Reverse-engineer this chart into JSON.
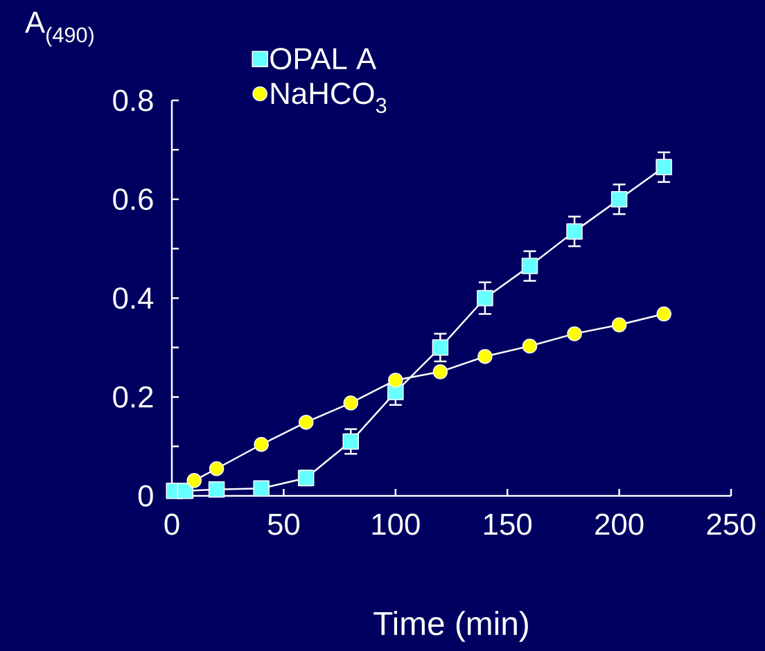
{
  "chart_data": {
    "type": "line",
    "xlabel": "Time (min)",
    "ylabel": "A$_{(490)}$",
    "xlim": [
      0,
      250
    ],
    "xticks": [
      0,
      50,
      100,
      150,
      200,
      250
    ],
    "ylim": [
      0,
      0.8
    ],
    "yticks": [
      0,
      {
        "value": 0.1,
        "label": null
      },
      0.2,
      {
        "value": 0.3,
        "label": null
      },
      0.4,
      {
        "value": 0.5,
        "label": null
      },
      0.6,
      {
        "value": 0.7,
        "label": null
      },
      0.8
    ],
    "grid": false,
    "legend": "top",
    "line_style": "solid",
    "series": [
      {
        "name": "OPAL A",
        "color": "#66ffff",
        "marker": "square",
        "x": [
          1,
          6,
          20,
          40,
          60,
          80,
          100,
          120,
          140,
          160,
          180,
          200,
          220
        ],
        "values": [
          0.01,
          0.01,
          0.013,
          0.015,
          0.036,
          0.11,
          0.21,
          0.3,
          0.4,
          0.465,
          0.535,
          0.6,
          0.665
        ],
        "errors": [
          null,
          null,
          null,
          null,
          0.015,
          0.025,
          0.026,
          0.028,
          0.032,
          0.03,
          0.03,
          0.03,
          0.03
        ]
      },
      {
        "name": "NaHCO$_{3}$",
        "color": "#ffff00",
        "marker": "circle",
        "x": [
          10,
          20,
          40,
          60,
          80,
          100,
          120,
          140,
          160,
          180,
          200,
          220
        ],
        "values": [
          0.031,
          0.055,
          0.104,
          0.149,
          0.188,
          0.234,
          0.251,
          0.282,
          0.303,
          0.328,
          0.346,
          0.368
        ]
      }
    ]
  }
}
